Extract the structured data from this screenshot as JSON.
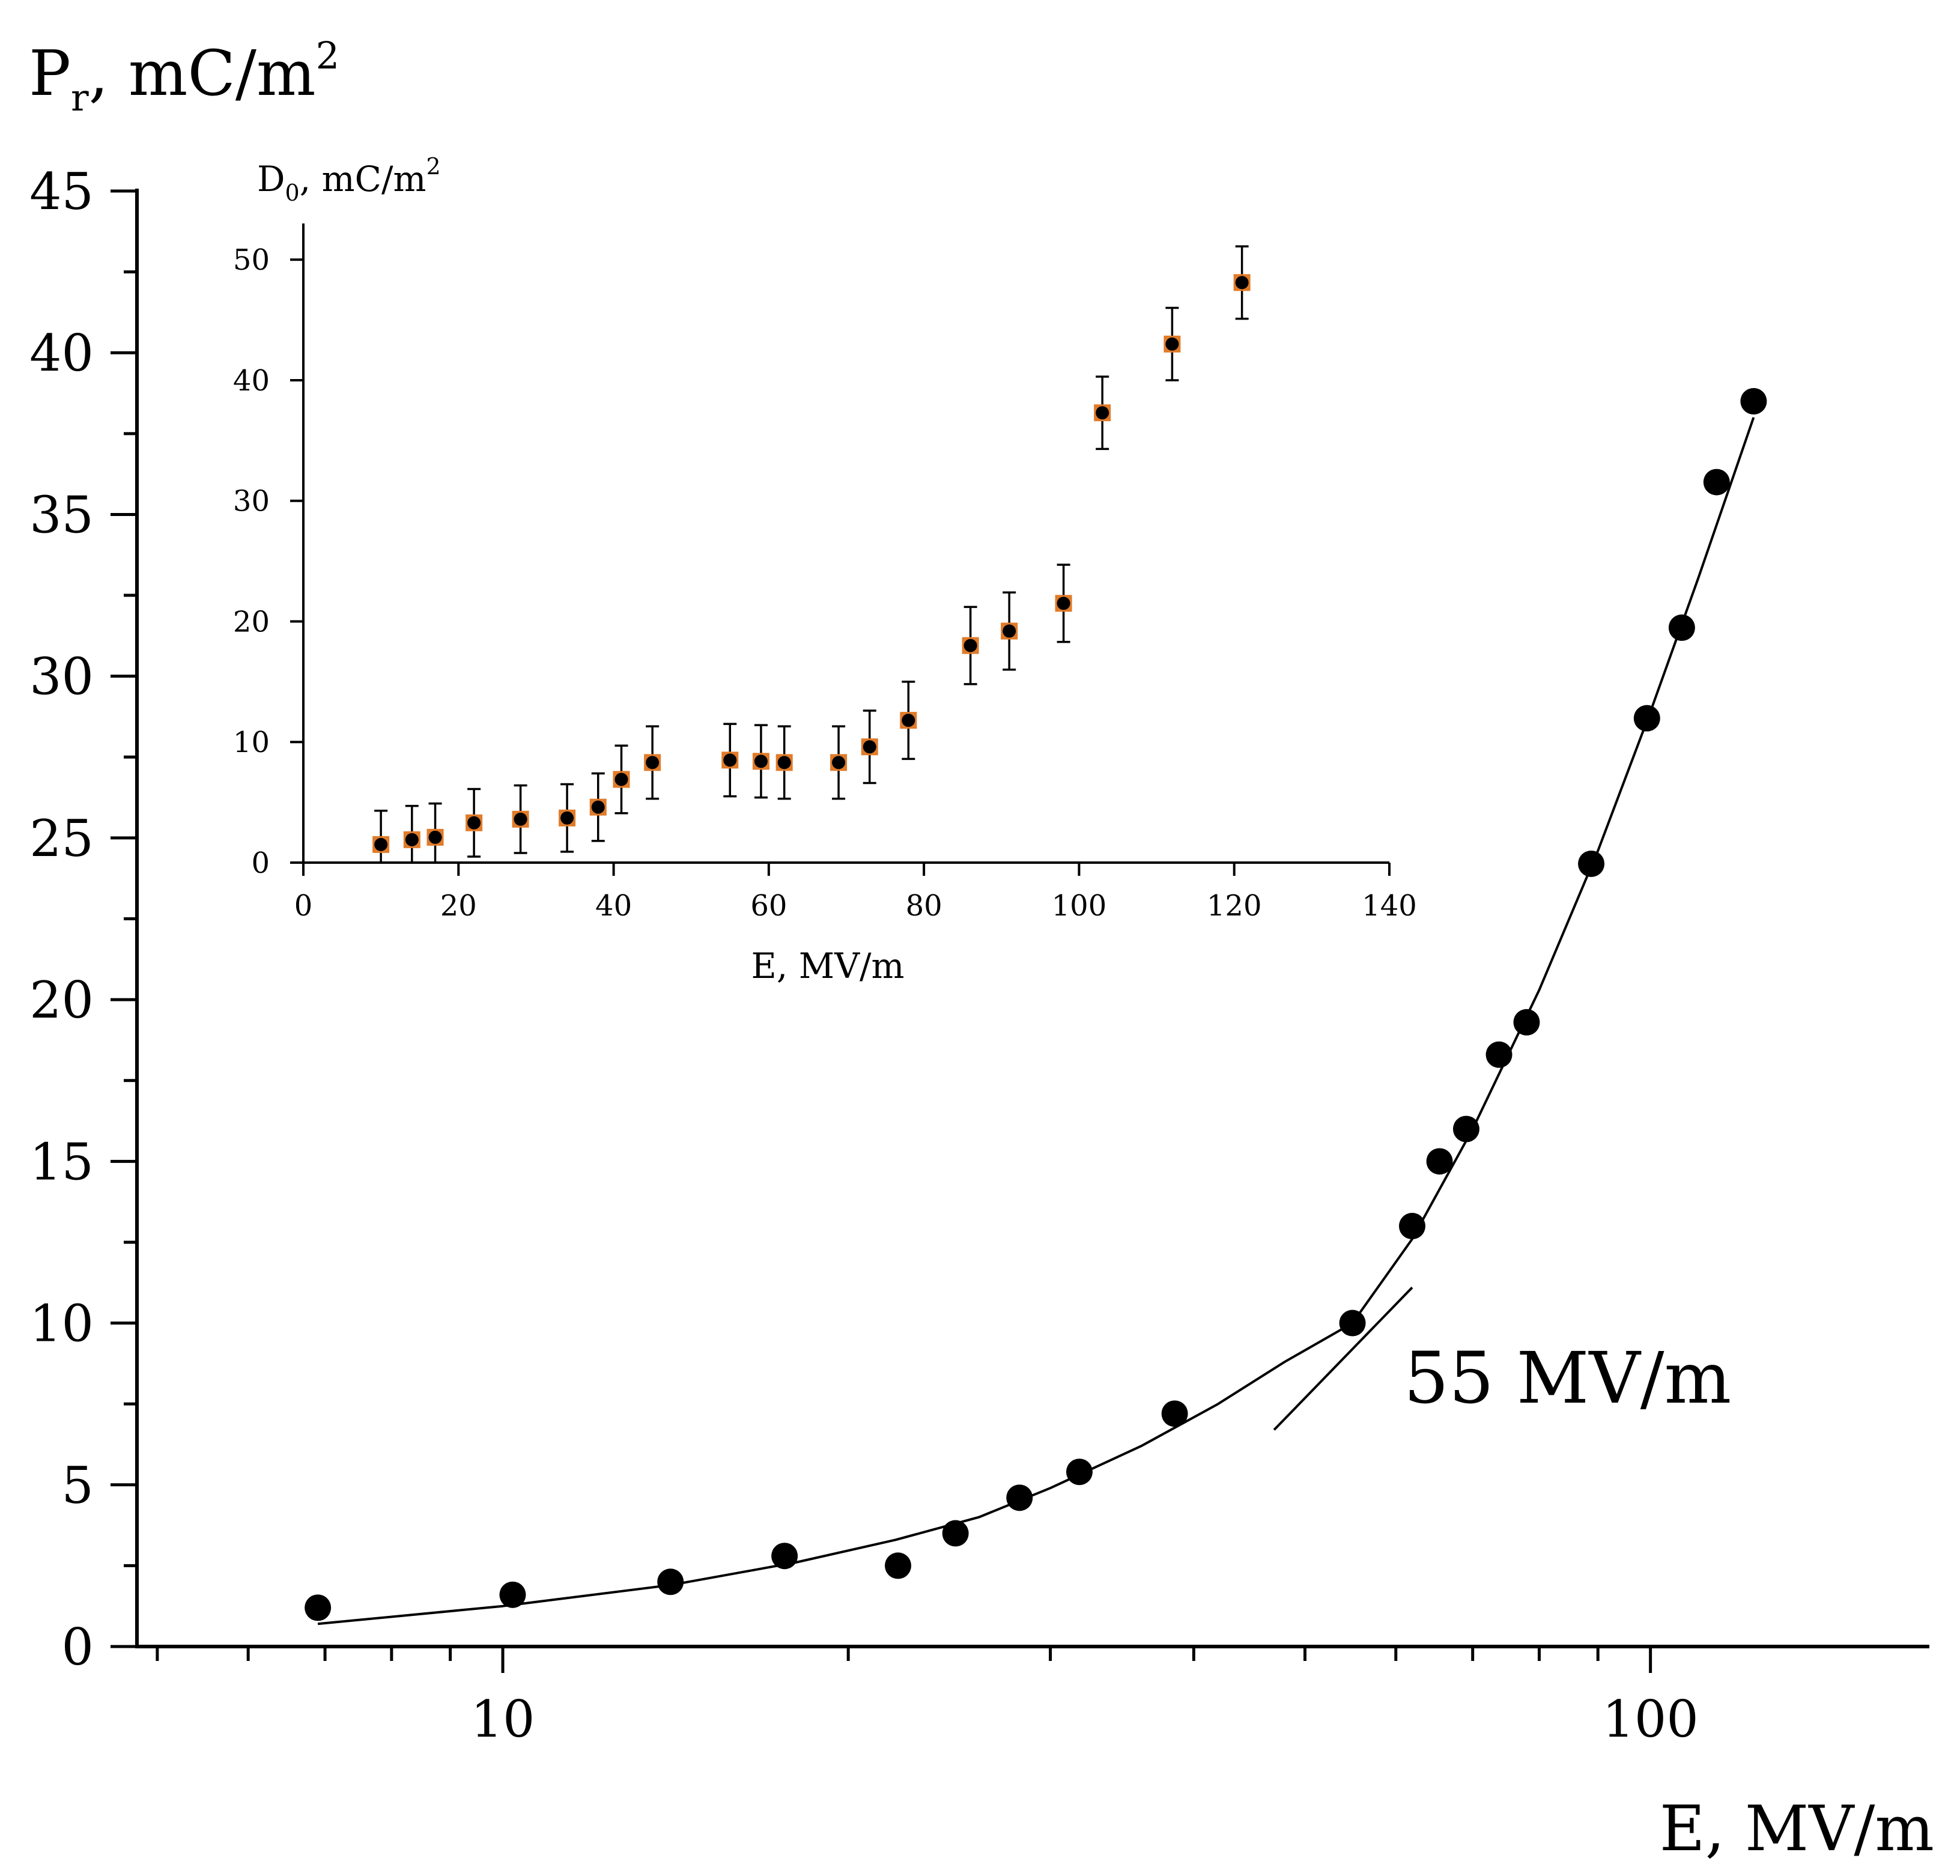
{
  "chart_data": [
    {
      "type": "scatter",
      "xlabel": "E, MV/m",
      "ylabel_main": "P",
      "ylabel_sub": "r",
      "ylabel_rest": ", mC/m",
      "ylabel_sup": "2",
      "x_scale": "log",
      "xlim": [
        4.8,
        175
      ],
      "ylim": [
        0,
        45
      ],
      "xticks": [
        {
          "value": 10,
          "label": "10"
        },
        {
          "value": 100,
          "label": "100"
        }
      ],
      "yticks": [
        {
          "value": 0,
          "label": "0"
        },
        {
          "value": 5,
          "label": "5"
        },
        {
          "value": 10,
          "label": "10"
        },
        {
          "value": 15,
          "label": "15"
        },
        {
          "value": 20,
          "label": "20"
        },
        {
          "value": 25,
          "label": "25"
        },
        {
          "value": 30,
          "label": "30"
        },
        {
          "value": 35,
          "label": "35"
        },
        {
          "value": 40,
          "label": "40"
        },
        {
          "value": 45,
          "label": "45"
        }
      ],
      "marker_color": "#000000",
      "series": [
        {
          "x": [
            6.9,
            10.2,
            14.0,
            17.6,
            22.1,
            24.8,
            28.2,
            31.8,
            38.5,
            55.0,
            62.0,
            65.5,
            69.1,
            73.8,
            78.0,
            88.8,
            99.3,
            106.5,
            114.2,
            123.0
          ],
          "y": [
            1.2,
            1.6,
            2.0,
            2.8,
            2.5,
            3.5,
            4.6,
            5.4,
            7.2,
            10.0,
            13.0,
            15.0,
            16.0,
            18.3,
            19.3,
            24.2,
            28.7,
            31.5,
            36.0,
            38.5
          ]
        }
      ],
      "fit_curve": {
        "x": [
          6.9,
          10,
          14,
          18,
          22,
          26,
          30,
          36,
          42,
          48,
          55,
          62,
          70,
          80,
          90,
          100,
          110,
          123
        ],
        "y": [
          0.7,
          1.25,
          1.9,
          2.6,
          3.3,
          4.0,
          4.9,
          6.2,
          7.5,
          8.8,
          10.0,
          12.6,
          16.0,
          20.3,
          24.6,
          28.9,
          33.0,
          38.0
        ]
      },
      "tangent_line": {
        "x": [
          47.0,
          62.0
        ],
        "y": [
          6.7,
          11.1
        ]
      },
      "annotation": "55 MV/m"
    },
    {
      "type": "scatter",
      "xlabel": "E, MV/m",
      "ylabel_main": "D",
      "ylabel_sub": "0",
      "ylabel_rest": ", mC/m",
      "ylabel_sup": "2",
      "xlim": [
        0,
        140
      ],
      "ylim": [
        0,
        53
      ],
      "xticks": [
        0,
        20,
        40,
        60,
        80,
        100,
        120,
        140
      ],
      "yticks": [
        0,
        10,
        20,
        30,
        40,
        50
      ],
      "marker_color": "#000000",
      "marker_edge_color": "#e07b2a",
      "series": [
        {
          "x": [
            10,
            14,
            17,
            22,
            28,
            34,
            38,
            41,
            45,
            55,
            59,
            62,
            69,
            73,
            78,
            86,
            91,
            98,
            103,
            112,
            121
          ],
          "y": [
            1.5,
            1.9,
            2.1,
            3.3,
            3.6,
            3.7,
            4.6,
            6.9,
            8.3,
            8.5,
            8.4,
            8.3,
            8.3,
            9.6,
            11.8,
            18.0,
            19.2,
            21.5,
            37.3,
            43.0,
            48.1
          ],
          "err": [
            2.8,
            2.8,
            2.8,
            2.8,
            2.8,
            2.8,
            2.8,
            2.8,
            3.0,
            3.0,
            3.0,
            3.0,
            3.0,
            3.0,
            3.2,
            3.2,
            3.2,
            3.2,
            3.0,
            3.0,
            3.0
          ]
        }
      ]
    }
  ]
}
